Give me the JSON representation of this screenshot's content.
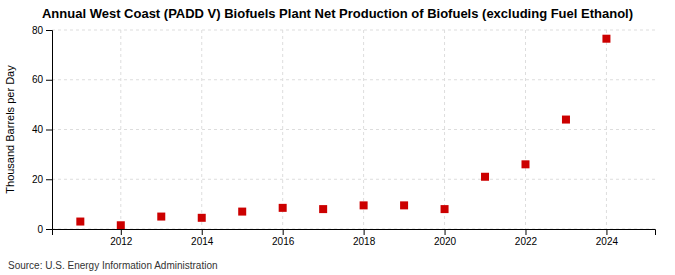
{
  "chart_data": {
    "type": "scatter",
    "title": "Annual West Coast (PADD V) Biofuels Plant Net Production of Biofuels (excluding Fuel Ethanol)",
    "ylabel": "Thousand Barrels per Day",
    "source": "Source: U.S. Energy Information Administration",
    "x": [
      2011,
      2012,
      2013,
      2014,
      2015,
      2016,
      2017,
      2018,
      2019,
      2020,
      2021,
      2022,
      2023,
      2024
    ],
    "values": [
      3.0,
      1.5,
      5.0,
      4.5,
      7.0,
      8.5,
      8.0,
      9.5,
      9.5,
      8.0,
      21.0,
      26.0,
      44.0,
      76.5
    ],
    "xlim": [
      2010.3,
      2025.2
    ],
    "xticks": [
      2012,
      2014,
      2016,
      2018,
      2020,
      2022,
      2024
    ],
    "ylim": [
      0,
      80
    ],
    "yticks": [
      0,
      20,
      40,
      60,
      80
    ],
    "color": "#cc0000",
    "marker": "square",
    "grid": true
  }
}
